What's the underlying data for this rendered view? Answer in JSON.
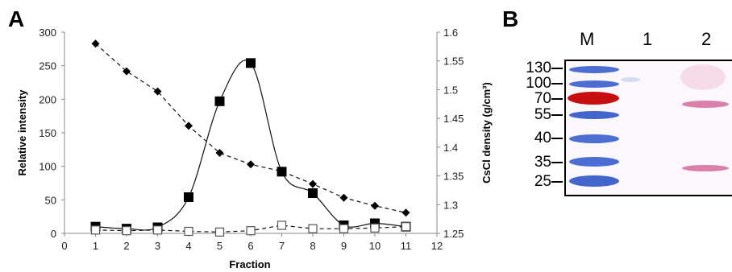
{
  "panels": {
    "a_label": "A",
    "b_label": "B"
  },
  "chart_data": {
    "type": "line",
    "xlabel": "Fraction",
    "ylabel_left": "Relative intensity",
    "ylabel_right": "CsCl density (g/cm³)",
    "x_ticks": [
      "0",
      "1",
      "2",
      "3",
      "4",
      "5",
      "6",
      "7",
      "8",
      "9",
      "10",
      "11",
      "12"
    ],
    "y_left_ticks": [
      "0",
      "50",
      "100",
      "150",
      "200",
      "250",
      "300"
    ],
    "y_right_ticks": [
      "1.25",
      "1.3",
      "1.35",
      "1.4",
      "1.45",
      "1.5",
      "1.55",
      "1.6"
    ],
    "xlim": [
      0,
      12
    ],
    "ylim_left": [
      0,
      300
    ],
    "ylim_right": [
      1.25,
      1.6
    ],
    "grid": false,
    "series": [
      {
        "marker": "filled-square",
        "line": "solid-smooth",
        "axis": "left",
        "x": [
          1,
          2,
          3,
          4,
          5,
          6,
          7,
          8,
          9,
          10,
          11
        ],
        "y": [
          10,
          7,
          9,
          54,
          197,
          254,
          92,
          60,
          12,
          15,
          10
        ]
      },
      {
        "marker": "open-square",
        "line": "dashed",
        "axis": "left",
        "x": [
          1,
          2,
          3,
          4,
          5,
          6,
          7,
          8,
          9,
          10,
          11
        ],
        "y": [
          5,
          4,
          5,
          3,
          2,
          4,
          12,
          7,
          7,
          8,
          10
        ]
      },
      {
        "marker": "filled-diamond",
        "line": "dashed",
        "axis": "right",
        "x": [
          1,
          2,
          3,
          4,
          5,
          6,
          7,
          8,
          9,
          10,
          11
        ],
        "y": [
          1.58,
          1.532,
          1.497,
          1.437,
          1.39,
          1.37,
          1.358,
          1.336,
          1.312,
          1.298,
          1.286
        ]
      }
    ]
  },
  "gel": {
    "lanes": [
      "M",
      "1",
      "2"
    ],
    "mw_labels": [
      "130",
      "100",
      "70",
      "55",
      "40",
      "35",
      "25"
    ]
  },
  "colors": {
    "marker_blue": "#1f4bc8",
    "marker_red": "#cc0c0c",
    "sample_pink": "#d56a9c"
  }
}
